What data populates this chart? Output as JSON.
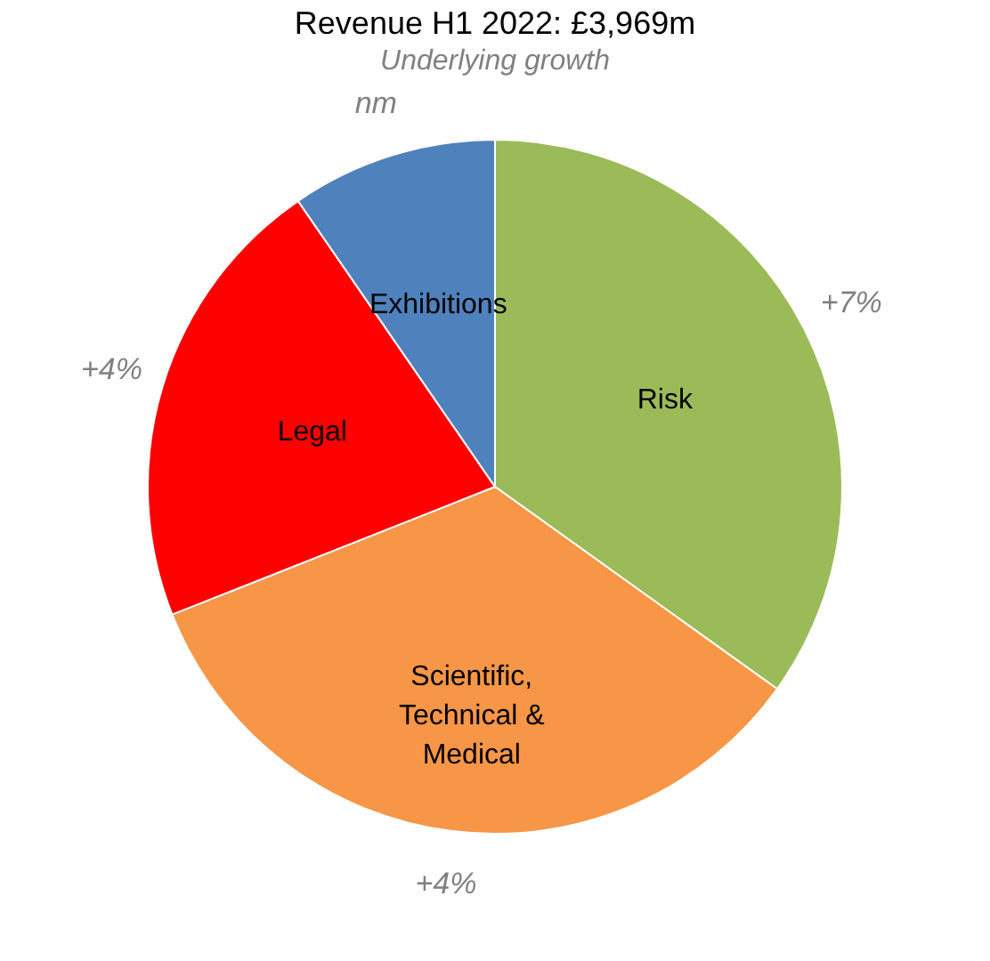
{
  "chart_data": {
    "type": "pie",
    "title": "Revenue H1 2022: £3,969m",
    "subtitle": "Underlying growth",
    "categories": [
      "Risk",
      "Scientific, Technical & Medical",
      "Legal",
      "Exhibitions"
    ],
    "values": [
      34.9,
      34.1,
      21.4,
      9.6
    ],
    "colors": [
      "#9bbb59",
      "#f79646",
      "#ff0000",
      "#4f81bd"
    ],
    "annotations": [
      "+7%",
      "+4%",
      "+4%",
      "nm"
    ],
    "legend": false
  }
}
